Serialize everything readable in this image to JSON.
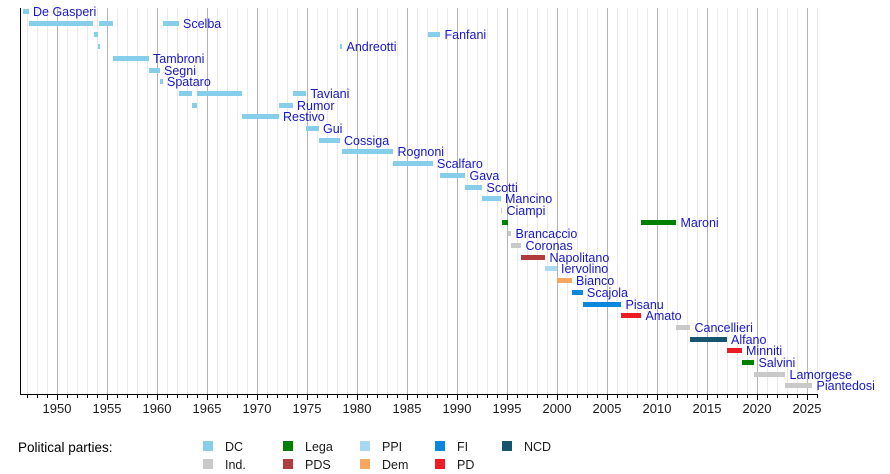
{
  "figure": {
    "background": "#ffffff",
    "minister_label_color": "#1717cb",
    "axis_color": "#000000",
    "tick_label_color": "#1a1a1a",
    "gridline_minor_color": "#e9e9e9",
    "gridline_major_color": "#b4b4b4"
  },
  "chart_data": {
    "type": "bar",
    "variant": "gantt-timeline",
    "title": "",
    "xlabel": "",
    "ylabel": "",
    "x_range": [
      1946.4,
      2026
    ],
    "tick_years": [
      1950,
      1955,
      1960,
      1965,
      1970,
      1975,
      1980,
      1985,
      1990,
      1995,
      2000,
      2005,
      2010,
      2015,
      2020,
      2025
    ],
    "grid": "vertical yearly minor lines, darker every 5 years",
    "legend_position": "bottom",
    "parties": {
      "DC": "#87ceeb",
      "Ind.": "#c9c9c9",
      "Lega": "#008000",
      "PDS": "#b03a3c",
      "PPI": "#a9d8f3",
      "Dem": "#f8a75f",
      "FI": "#0c87de",
      "PD": "#ec1c24",
      "NCD": "#175470"
    },
    "rows": [
      {
        "name": "De Gasperi",
        "party": "DC",
        "terms": [
          [
            1946.55,
            1947.15
          ]
        ]
      },
      {
        "name": "Scelba",
        "party": "DC",
        "terms": [
          [
            1947.15,
            1953.6
          ],
          [
            1954.15,
            1955.55
          ],
          [
            1960.55,
            1962.15
          ]
        ]
      },
      {
        "name": "Fanfani",
        "party": "DC",
        "terms": [
          [
            1953.65,
            1954.1
          ],
          [
            1987.1,
            1988.3
          ]
        ]
      },
      {
        "name": "Andreotti",
        "party": "DC",
        "terms": [
          [
            1954.1,
            1954.25
          ],
          [
            1978.25,
            1978.5
          ]
        ]
      },
      {
        "name": "Tambroni",
        "party": "DC",
        "terms": [
          [
            1955.55,
            1959.15
          ]
        ]
      },
      {
        "name": "Segni",
        "party": "DC",
        "terms": [
          [
            1959.15,
            1960.25
          ]
        ]
      },
      {
        "name": "Spataro",
        "party": "DC",
        "terms": [
          [
            1960.25,
            1960.55
          ]
        ]
      },
      {
        "name": "Taviani",
        "party": "DC",
        "terms": [
          [
            1962.15,
            1963.5
          ],
          [
            1963.95,
            1968.5
          ],
          [
            1973.55,
            1974.9
          ]
        ]
      },
      {
        "name": "Rumor",
        "party": "DC",
        "terms": [
          [
            1963.5,
            1963.95
          ],
          [
            1972.15,
            1973.55
          ]
        ]
      },
      {
        "name": "Restivo",
        "party": "DC",
        "terms": [
          [
            1968.5,
            1972.15
          ]
        ]
      },
      {
        "name": "Gui",
        "party": "DC",
        "terms": [
          [
            1974.9,
            1976.15
          ]
        ]
      },
      {
        "name": "Cossiga",
        "party": "DC",
        "terms": [
          [
            1976.15,
            1978.25
          ]
        ]
      },
      {
        "name": "Rognoni",
        "party": "DC",
        "terms": [
          [
            1978.5,
            1983.6
          ]
        ]
      },
      {
        "name": "Scalfaro",
        "party": "DC",
        "terms": [
          [
            1983.6,
            1987.55
          ]
        ]
      },
      {
        "name": "Gava",
        "party": "DC",
        "terms": [
          [
            1988.3,
            1990.8
          ]
        ]
      },
      {
        "name": "Scotti",
        "party": "DC",
        "terms": [
          [
            1990.8,
            1992.5
          ]
        ]
      },
      {
        "name": "Mancino",
        "party": "DC",
        "terms": [
          [
            1992.5,
            1994.35
          ]
        ]
      },
      {
        "name": "Ciampi",
        "party": "Ind.",
        "terms": [
          [
            1994.35,
            1994.5
          ]
        ]
      },
      {
        "name": "Maroni",
        "party": "Lega",
        "terms": [
          [
            1994.5,
            1995.05
          ],
          [
            2008.4,
            2011.9
          ]
        ]
      },
      {
        "name": "Brancaccio",
        "party": "Ind.",
        "terms": [
          [
            1995.05,
            1995.4
          ]
        ]
      },
      {
        "name": "Coronas",
        "party": "Ind.",
        "terms": [
          [
            1995.4,
            1996.4
          ]
        ]
      },
      {
        "name": "Napolitano",
        "party": "PDS",
        "terms": [
          [
            1996.4,
            1998.8
          ]
        ]
      },
      {
        "name": "Iervolino",
        "party": "PPI",
        "terms": [
          [
            1998.8,
            1999.95
          ]
        ]
      },
      {
        "name": "Bianco",
        "party": "Dem",
        "terms": [
          [
            1999.95,
            2001.45
          ]
        ]
      },
      {
        "name": "Scajola",
        "party": "FI",
        "terms": [
          [
            2001.45,
            2002.55
          ]
        ]
      },
      {
        "name": "Pisanu",
        "party": "FI",
        "terms": [
          [
            2002.55,
            2006.4
          ]
        ]
      },
      {
        "name": "Amato",
        "party": "PD",
        "terms": [
          [
            2006.4,
            2008.4
          ]
        ]
      },
      {
        "name": "Cancellieri",
        "party": "Ind.",
        "terms": [
          [
            2011.9,
            2013.3
          ]
        ]
      },
      {
        "name": "Alfano",
        "party": "NCD",
        "terms": [
          [
            2013.3,
            2016.95
          ]
        ]
      },
      {
        "name": "Minniti",
        "party": "PD",
        "terms": [
          [
            2016.95,
            2018.45
          ]
        ]
      },
      {
        "name": "Salvini",
        "party": "Lega",
        "terms": [
          [
            2018.45,
            2019.7
          ]
        ]
      },
      {
        "name": "Lamorgese",
        "party": "Ind.",
        "terms": [
          [
            2019.7,
            2022.8
          ]
        ]
      },
      {
        "name": "Piantedosi",
        "party": "Ind.",
        "terms": [
          [
            2022.8,
            2025.5
          ]
        ]
      }
    ]
  },
  "legend": {
    "title": "Political parties:",
    "rows": [
      [
        "DC",
        "Lega",
        "PPI",
        "FI",
        "NCD"
      ],
      [
        "Ind.",
        "PDS",
        "Dem",
        "PD"
      ]
    ]
  }
}
